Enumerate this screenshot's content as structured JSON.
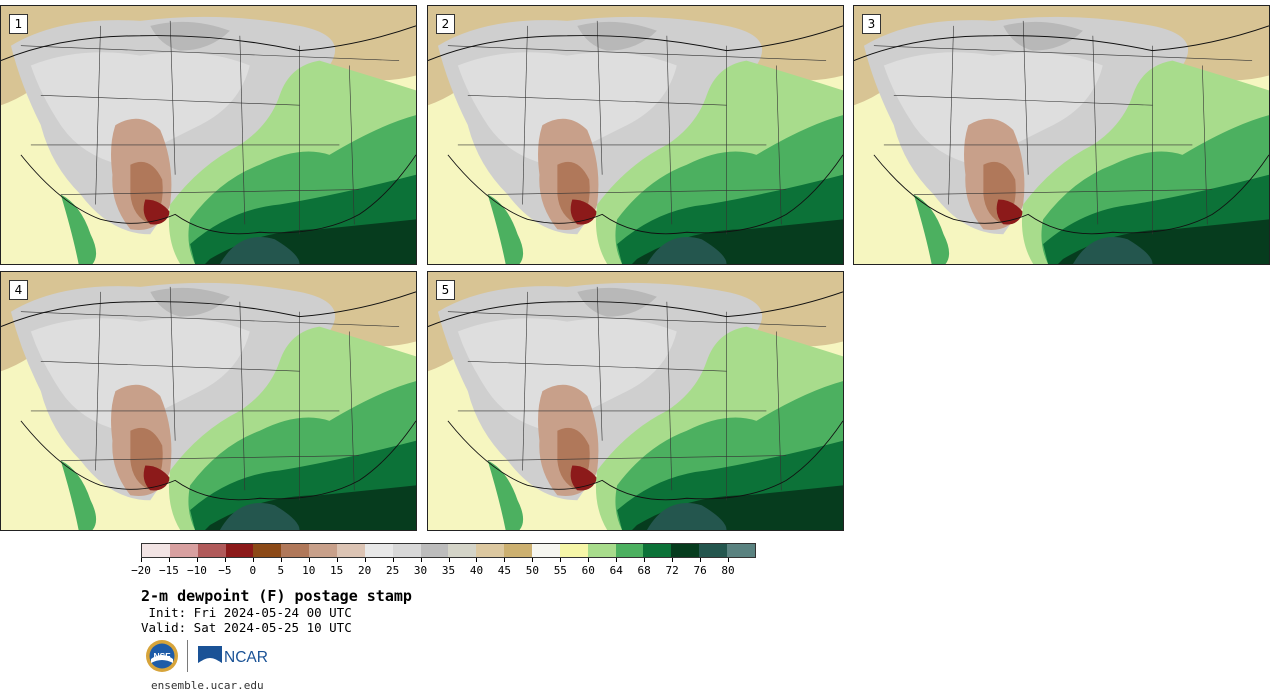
{
  "panels": [
    {
      "label": "1"
    },
    {
      "label": "2"
    },
    {
      "label": "3"
    },
    {
      "label": "4"
    },
    {
      "label": "5"
    }
  ],
  "colorbar": {
    "colors": [
      "#f2e4e4",
      "#d8a0a0",
      "#b05a5a",
      "#8c1a1a",
      "#8c4a18",
      "#b0785a",
      "#c8a08a",
      "#dcc4b4",
      "#e8e8e8",
      "#d8d8d8",
      "#bcbcbc",
      "#d4d4c8",
      "#dcc8a0",
      "#ccb070",
      "#f6f6f0",
      "#f6f6a8",
      "#a8dc8c",
      "#4cb060",
      "#0c7238",
      "#063c1e",
      "#24564e",
      "#5a8280"
    ],
    "tick_labels": [
      "-20",
      "-15",
      "-10",
      "-5",
      "0",
      "5",
      "10",
      "15",
      "20",
      "25",
      "30",
      "35",
      "40",
      "45",
      "50",
      "55",
      "60",
      "64",
      "68",
      "72",
      "76",
      "80"
    ]
  },
  "title": "2-m dewpoint (F) postage stamp",
  "init": " Init: Fri 2024-05-24 00 UTC",
  "valid": "Valid: Sat 2024-05-25 10 UTC",
  "logos": {
    "nsf": "NSF",
    "ncar": "NCAR"
  },
  "url": "ensemble.ucar.edu"
}
